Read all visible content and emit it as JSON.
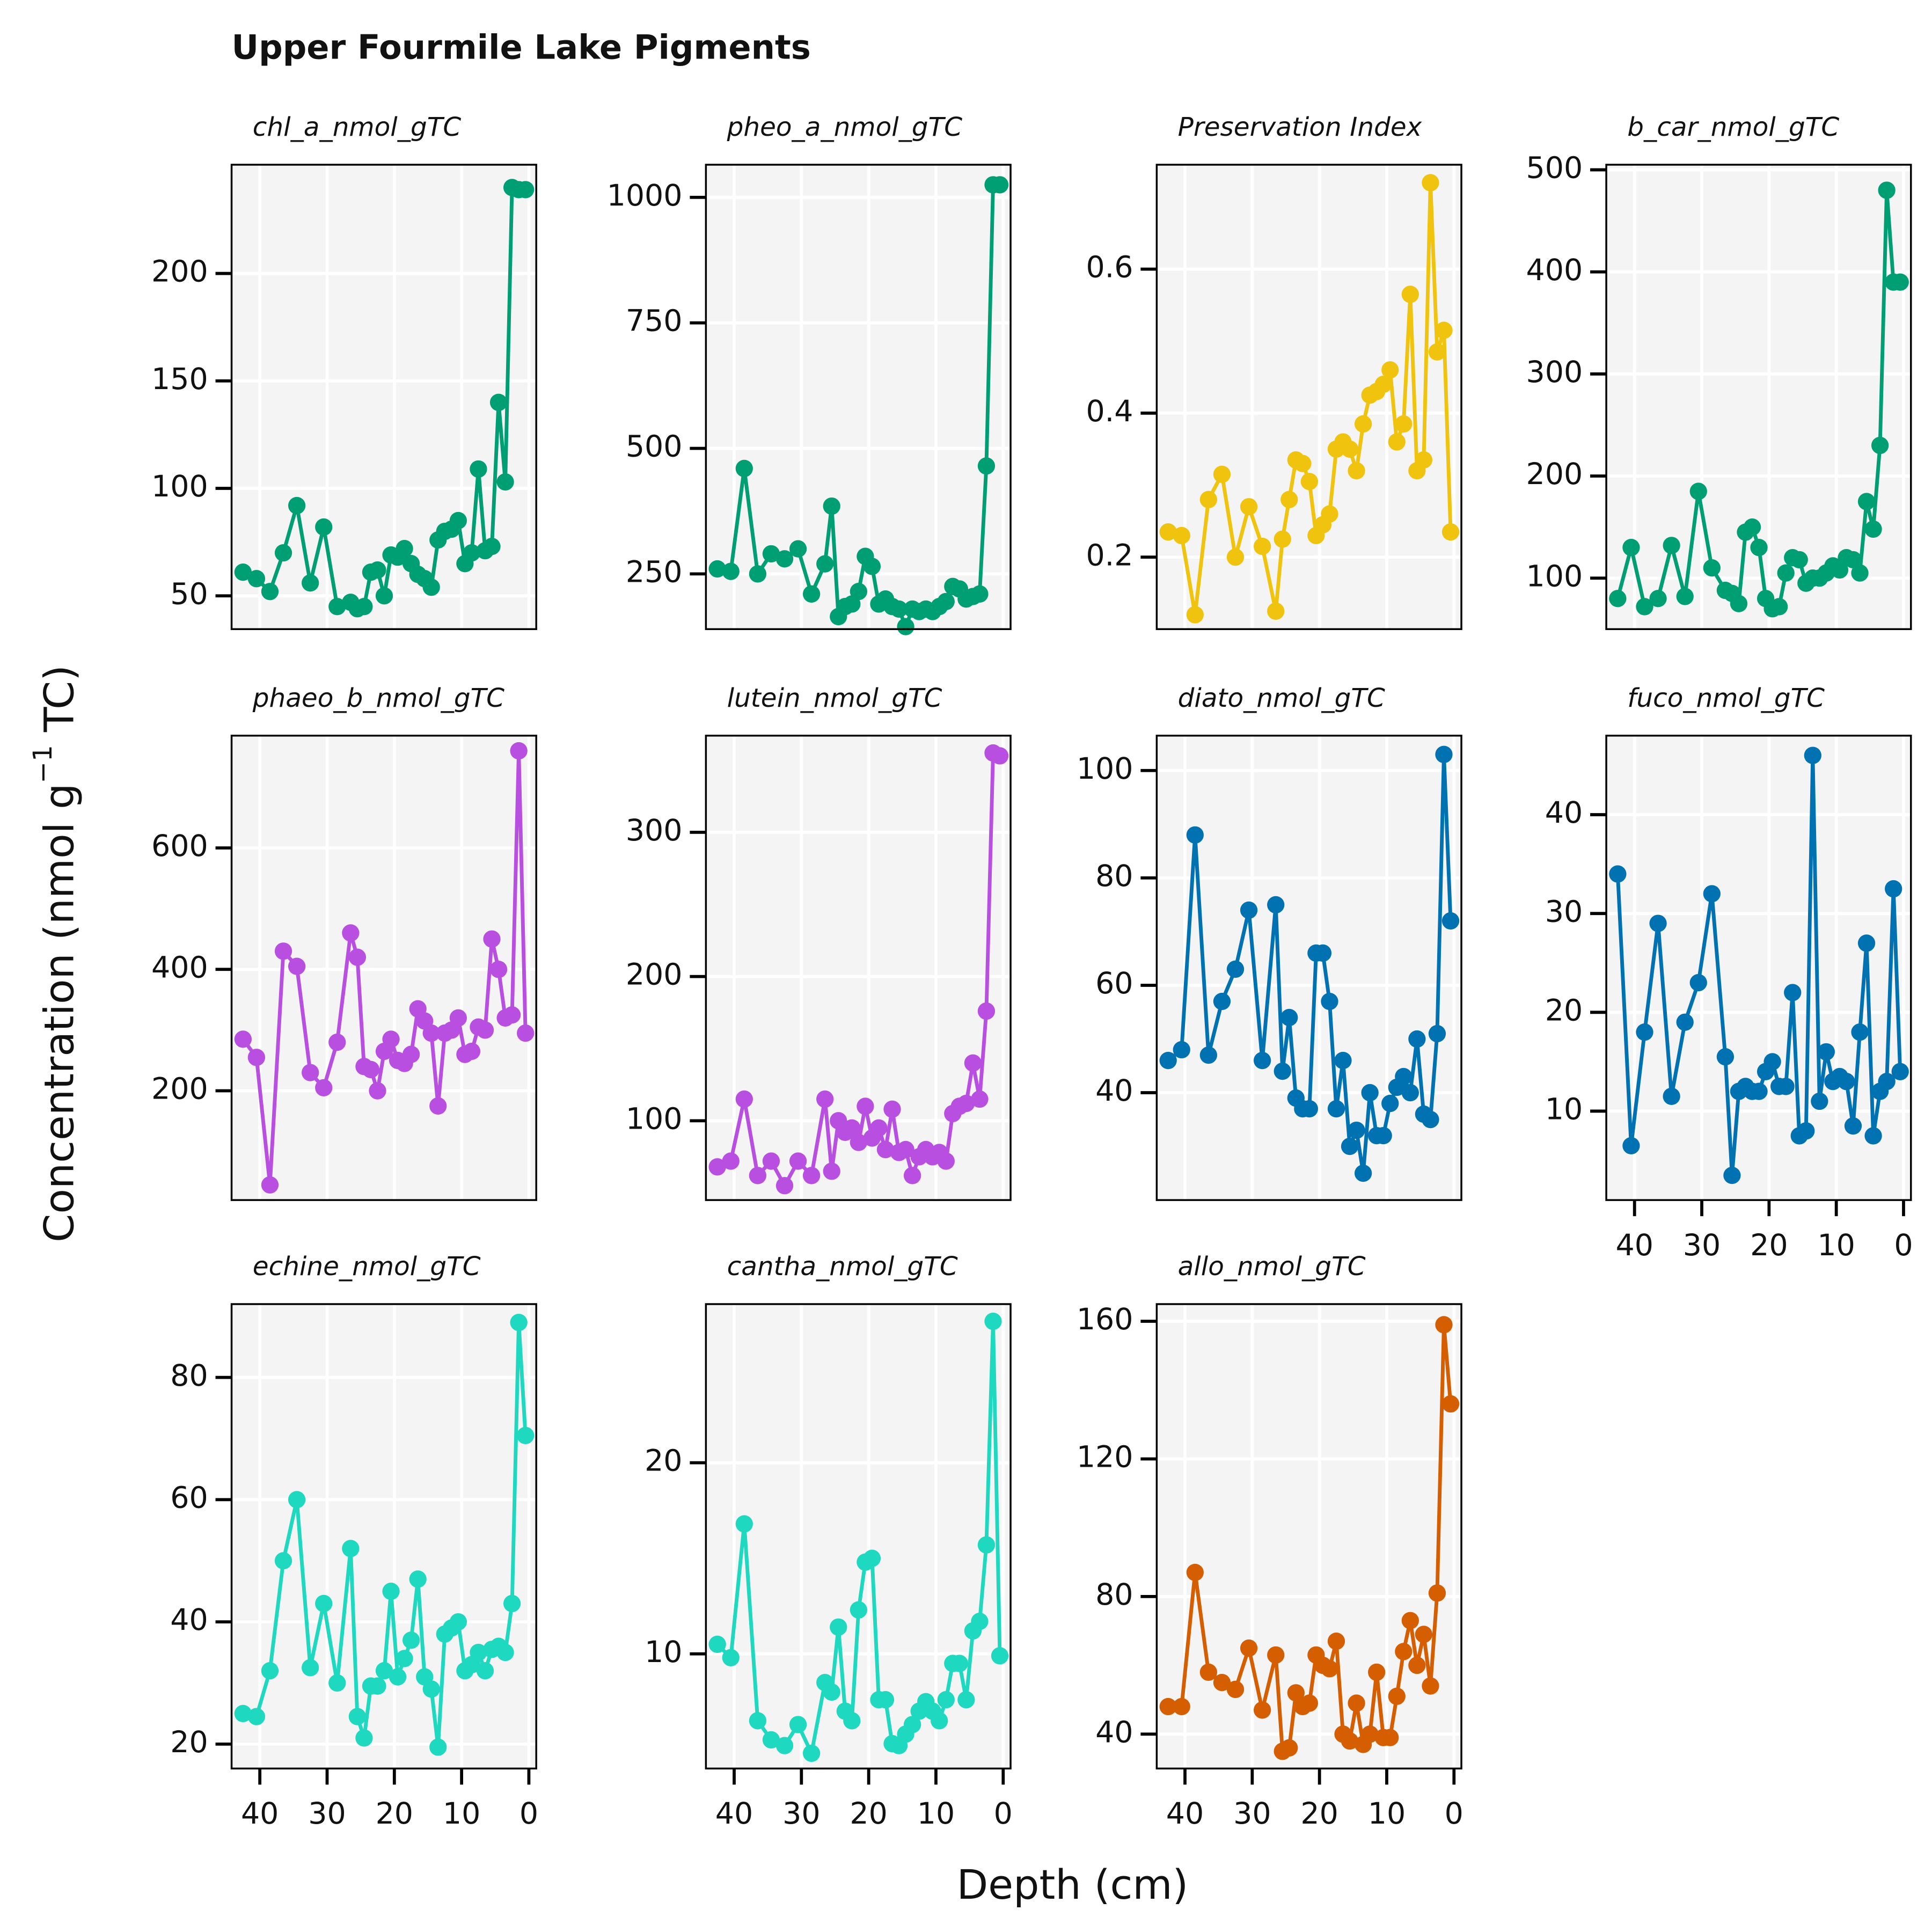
{
  "title": "Upper Fourmile Lake Pigments",
  "x_label": "Depth (cm)",
  "y_label": [
    "Concentration (nmol g",
    "−1",
    " TC)"
  ],
  "chart_data": [
    {
      "type": "line",
      "title": "chl_a_nmol_gTC",
      "color": "#009e73",
      "x": [
        42.5,
        40.5,
        38.5,
        36.5,
        34.5,
        32.5,
        30.5,
        28.5,
        26.5,
        25.5,
        24.5,
        23.5,
        22.5,
        21.5,
        20.5,
        19.5,
        18.5,
        17.5,
        16.5,
        15.5,
        14.5,
        13.5,
        12.5,
        11.5,
        10.5,
        9.5,
        8.5,
        7.5,
        6.5,
        5.5,
        4.5,
        3.5,
        2.5,
        1.5,
        0.5
      ],
      "values": [
        61,
        58,
        52,
        70,
        92,
        56,
        82,
        45,
        47,
        44,
        45,
        61,
        62,
        50,
        69,
        68,
        72,
        65,
        60,
        58,
        54,
        76,
        80,
        81,
        85,
        65,
        70,
        109,
        71,
        73,
        140,
        103,
        240,
        239,
        239
      ],
      "xlim": [
        44.2,
        -1.1
      ],
      "ylim": [
        34.5,
        250.6
      ],
      "xticks": [
        40,
        30,
        20,
        10,
        0
      ],
      "yticks": [
        50,
        100,
        150,
        200
      ]
    },
    {
      "type": "line",
      "title": "pheo_a_nmol_gTC",
      "color": "#009e73",
      "x": [
        42.5,
        40.5,
        38.5,
        36.5,
        34.5,
        32.5,
        30.5,
        28.5,
        26.5,
        25.5,
        24.5,
        23.5,
        22.5,
        21.5,
        20.5,
        19.5,
        18.5,
        17.5,
        16.5,
        15.5,
        14.5,
        13.5,
        12.5,
        11.5,
        10.5,
        9.5,
        8.5,
        7.5,
        6.5,
        5.5,
        4.5,
        3.5,
        2.5,
        1.5,
        0.5
      ],
      "values": [
        260,
        255,
        460,
        250,
        290,
        280,
        300,
        210,
        270,
        385,
        165,
        185,
        190,
        215,
        285,
        265,
        190,
        200,
        185,
        180,
        145,
        180,
        175,
        180,
        175,
        185,
        195,
        225,
        220,
        200,
        205,
        210,
        465,
        1025,
        1025
      ],
      "xlim": [
        44.2,
        -1.1
      ],
      "ylim": [
        140,
        1065
      ],
      "xticks": [
        40,
        30,
        20,
        10,
        0
      ],
      "yticks": [
        250,
        500,
        750,
        1000
      ]
    },
    {
      "type": "line",
      "title": "Preservation Index",
      "color": "#f0c30f",
      "x": [
        42.5,
        40.5,
        38.5,
        36.5,
        34.5,
        32.5,
        30.5,
        28.5,
        26.5,
        25.5,
        24.5,
        23.5,
        22.5,
        21.5,
        20.5,
        19.5,
        18.5,
        17.5,
        16.5,
        15.5,
        14.5,
        13.5,
        12.5,
        11.5,
        10.5,
        9.5,
        8.5,
        7.5,
        6.5,
        5.5,
        4.5,
        3.5,
        2.5,
        1.5,
        0.5
      ],
      "values": [
        0.235,
        0.23,
        0.12,
        0.28,
        0.315,
        0.2,
        0.27,
        0.215,
        0.125,
        0.225,
        0.28,
        0.335,
        0.33,
        0.305,
        0.23,
        0.245,
        0.26,
        0.35,
        0.36,
        0.35,
        0.32,
        0.385,
        0.425,
        0.43,
        0.44,
        0.46,
        0.36,
        0.385,
        0.565,
        0.32,
        0.335,
        0.72,
        0.485,
        0.515,
        0.235
      ],
      "xlim": [
        44.2,
        -1.1
      ],
      "ylim": [
        0.1,
        0.745
      ],
      "xticks": [
        40,
        30,
        20,
        10,
        0
      ],
      "yticks": [
        0.2,
        0.4,
        0.6
      ]
    },
    {
      "type": "line",
      "title": "b_car_nmol_gTC",
      "color": "#009e73",
      "x": [
        42.5,
        40.5,
        38.5,
        36.5,
        34.5,
        32.5,
        30.5,
        28.5,
        26.5,
        25.5,
        24.5,
        23.5,
        22.5,
        21.5,
        20.5,
        19.5,
        18.5,
        17.5,
        16.5,
        15.5,
        14.5,
        13.5,
        12.5,
        11.5,
        10.5,
        9.5,
        8.5,
        7.5,
        6.5,
        5.5,
        4.5,
        3.5,
        2.5,
        1.5,
        0.5
      ],
      "values": [
        80,
        130,
        72,
        80,
        132,
        82,
        185,
        110,
        88,
        85,
        75,
        145,
        150,
        130,
        80,
        70,
        72,
        105,
        120,
        118,
        95,
        100,
        100,
        105,
        112,
        108,
        120,
        118,
        105,
        175,
        148,
        230,
        480,
        390,
        390
      ],
      "xlim": [
        44.2,
        -1.1
      ],
      "ylim": [
        50,
        505
      ],
      "xticks": [
        40,
        30,
        20,
        10,
        0
      ],
      "yticks": [
        100,
        200,
        300,
        400,
        500
      ]
    },
    {
      "type": "line",
      "title": "phaeo_b_nmol_gTC",
      "color": "#b84fe0",
      "x": [
        42.5,
        40.5,
        38.5,
        36.5,
        34.5,
        32.5,
        30.5,
        28.5,
        26.5,
        25.5,
        24.5,
        23.5,
        22.5,
        21.5,
        20.5,
        19.5,
        18.5,
        17.5,
        16.5,
        15.5,
        14.5,
        13.5,
        12.5,
        11.5,
        10.5,
        9.5,
        8.5,
        7.5,
        6.5,
        5.5,
        4.5,
        3.5,
        2.5,
        1.5,
        0.5
      ],
      "values": [
        285,
        255,
        45,
        430,
        405,
        230,
        205,
        280,
        460,
        420,
        240,
        235,
        200,
        265,
        285,
        250,
        245,
        260,
        335,
        315,
        295,
        175,
        295,
        300,
        320,
        260,
        265,
        305,
        300,
        450,
        400,
        320,
        325,
        760,
        295
      ],
      "xlim": [
        44.2,
        -1.1
      ],
      "ylim": [
        20,
        785
      ],
      "xticks": [
        40,
        30,
        20,
        10,
        0
      ],
      "yticks": [
        200,
        400,
        600
      ]
    },
    {
      "type": "line",
      "title": "lutein_nmol_gTC",
      "color": "#b84fe0",
      "x": [
        42.5,
        40.5,
        38.5,
        36.5,
        34.5,
        32.5,
        30.5,
        28.5,
        26.5,
        25.5,
        24.5,
        23.5,
        22.5,
        21.5,
        20.5,
        19.5,
        18.5,
        17.5,
        16.5,
        15.5,
        14.5,
        13.5,
        12.5,
        11.5,
        10.5,
        9.5,
        8.5,
        7.5,
        6.5,
        5.5,
        4.5,
        3.5,
        2.5,
        1.5,
        0.5
      ],
      "values": [
        68,
        72,
        115,
        62,
        72,
        55,
        72,
        62,
        115,
        65,
        100,
        92,
        95,
        85,
        110,
        88,
        95,
        80,
        108,
        78,
        80,
        62,
        75,
        80,
        75,
        78,
        72,
        105,
        110,
        112,
        140,
        115,
        176,
        355,
        353
      ],
      "xlim": [
        44.2,
        -1.1
      ],
      "ylim": [
        45,
        367
      ],
      "xticks": [
        40,
        30,
        20,
        10,
        0
      ],
      "yticks": [
        100,
        200,
        300
      ]
    },
    {
      "type": "line",
      "title": "diato_nmol_gTC",
      "color": "#0072b2",
      "x": [
        42.5,
        40.5,
        38.5,
        36.5,
        34.5,
        32.5,
        30.5,
        28.5,
        26.5,
        25.5,
        24.5,
        23.5,
        22.5,
        21.5,
        20.5,
        19.5,
        18.5,
        17.5,
        16.5,
        15.5,
        14.5,
        13.5,
        12.5,
        11.5,
        10.5,
        9.5,
        8.5,
        7.5,
        6.5,
        5.5,
        4.5,
        3.5,
        2.5,
        1.5,
        0.5
      ],
      "values": [
        46,
        48,
        88,
        47,
        57,
        63,
        74,
        46,
        75,
        44,
        54,
        39,
        37,
        37,
        66,
        66,
        57,
        37,
        46,
        30,
        33,
        25,
        40,
        32,
        32,
        38,
        41,
        43,
        40,
        50,
        36,
        35,
        51,
        103,
        72
      ],
      "xlim": [
        44.2,
        -1.1
      ],
      "ylim": [
        20,
        106.5
      ],
      "xticks": [
        40,
        30,
        20,
        10,
        0
      ],
      "yticks": [
        40,
        60,
        80,
        100
      ]
    },
    {
      "type": "line",
      "title": "fuco_nmol_gTC",
      "color": "#0072b2",
      "x": [
        42.5,
        40.5,
        38.5,
        36.5,
        34.5,
        32.5,
        30.5,
        28.5,
        26.5,
        25.5,
        24.5,
        23.5,
        22.5,
        21.5,
        20.5,
        19.5,
        18.5,
        17.5,
        16.5,
        15.5,
        14.5,
        13.5,
        12.5,
        11.5,
        10.5,
        9.5,
        8.5,
        7.5,
        6.5,
        5.5,
        4.5,
        3.5,
        2.5,
        1.5,
        0.5
      ],
      "values": [
        34,
        6.5,
        18,
        29,
        11.5,
        19,
        23,
        32,
        15.5,
        3.5,
        12,
        12.5,
        12,
        12,
        14,
        15,
        12.5,
        12.5,
        22,
        7.5,
        8,
        46,
        11,
        16,
        13,
        13.5,
        13,
        8.5,
        18,
        27,
        7.5,
        12,
        13,
        32.5,
        14
      ],
      "xlim": [
        44.2,
        -1.1
      ],
      "ylim": [
        1,
        48
      ],
      "xticks": [
        40,
        30,
        20,
        10,
        0
      ],
      "yticks": [
        10,
        20,
        30,
        40
      ]
    },
    {
      "type": "line",
      "title": "echine_nmol_gTC",
      "color": "#1fd8c0",
      "x": [
        42.5,
        40.5,
        38.5,
        36.5,
        34.5,
        32.5,
        30.5,
        28.5,
        26.5,
        25.5,
        24.5,
        23.5,
        22.5,
        21.5,
        20.5,
        19.5,
        18.5,
        17.5,
        16.5,
        15.5,
        14.5,
        13.5,
        12.5,
        11.5,
        10.5,
        9.5,
        8.5,
        7.5,
        6.5,
        5.5,
        4.5,
        3.5,
        2.5,
        1.5,
        0.5
      ],
      "values": [
        25,
        24.5,
        32,
        50,
        60,
        32.5,
        43,
        30,
        52,
        24.5,
        21,
        29.5,
        29.5,
        32,
        45,
        31,
        34,
        37,
        47,
        31,
        29,
        19.5,
        38,
        39,
        40,
        32,
        33,
        35,
        32,
        35.5,
        36,
        35,
        43,
        89,
        70.5
      ],
      "xlim": [
        44.2,
        -1.1
      ],
      "ylim": [
        16,
        92
      ],
      "xticks": [
        40,
        30,
        20,
        10,
        0
      ],
      "yticks": [
        20,
        40,
        60,
        80
      ]
    },
    {
      "type": "line",
      "title": "cantha_nmol_gTC",
      "color": "#1fd8c0",
      "x": [
        42.5,
        40.5,
        38.5,
        36.5,
        34.5,
        32.5,
        30.5,
        28.5,
        26.5,
        25.5,
        24.5,
        23.5,
        22.5,
        21.5,
        20.5,
        19.5,
        18.5,
        17.5,
        16.5,
        15.5,
        14.5,
        13.5,
        12.5,
        11.5,
        10.5,
        9.5,
        8.5,
        7.5,
        6.5,
        5.5,
        4.5,
        3.5,
        2.5,
        1.5,
        0.5
      ],
      "values": [
        10.5,
        9.8,
        16.8,
        6.5,
        5.5,
        5.2,
        6.3,
        4.8,
        8.5,
        8,
        11.4,
        7,
        6.5,
        12.3,
        14.8,
        15,
        7.6,
        7.6,
        5.3,
        5.2,
        5.8,
        6.3,
        7,
        7.5,
        7,
        6.5,
        7.6,
        9.5,
        9.5,
        7.6,
        11.2,
        11.7,
        15.7,
        27.4,
        9.9
      ],
      "xlim": [
        44.2,
        -1.1
      ],
      "ylim": [
        4,
        28.3
      ],
      "xticks": [
        40,
        30,
        20,
        10,
        0
      ],
      "yticks": [
        10,
        20
      ]
    },
    {
      "type": "line",
      "title": "allo_nmol_gTC",
      "color": "#d55e00",
      "x": [
        42.5,
        40.5,
        38.5,
        36.5,
        34.5,
        32.5,
        30.5,
        28.5,
        26.5,
        25.5,
        24.5,
        23.5,
        22.5,
        21.5,
        20.5,
        19.5,
        18.5,
        17.5,
        16.5,
        15.5,
        14.5,
        13.5,
        12.5,
        11.5,
        10.5,
        9.5,
        8.5,
        7.5,
        6.5,
        5.5,
        4.5,
        3.5,
        2.5,
        1.5,
        0.5
      ],
      "values": [
        48,
        48,
        87,
        58,
        55,
        53,
        65,
        47,
        63,
        35,
        36,
        52,
        48,
        49,
        63,
        60,
        59,
        67,
        40,
        38,
        49,
        37,
        40,
        58,
        39,
        39,
        51,
        64,
        73,
        60,
        69,
        54,
        81,
        159,
        136
      ],
      "xlim": [
        44.2,
        -1.1
      ],
      "ylim": [
        30,
        165
      ],
      "xticks": [
        40,
        30,
        20,
        10,
        0
      ],
      "yticks": [
        40,
        80,
        120,
        160
      ]
    }
  ]
}
